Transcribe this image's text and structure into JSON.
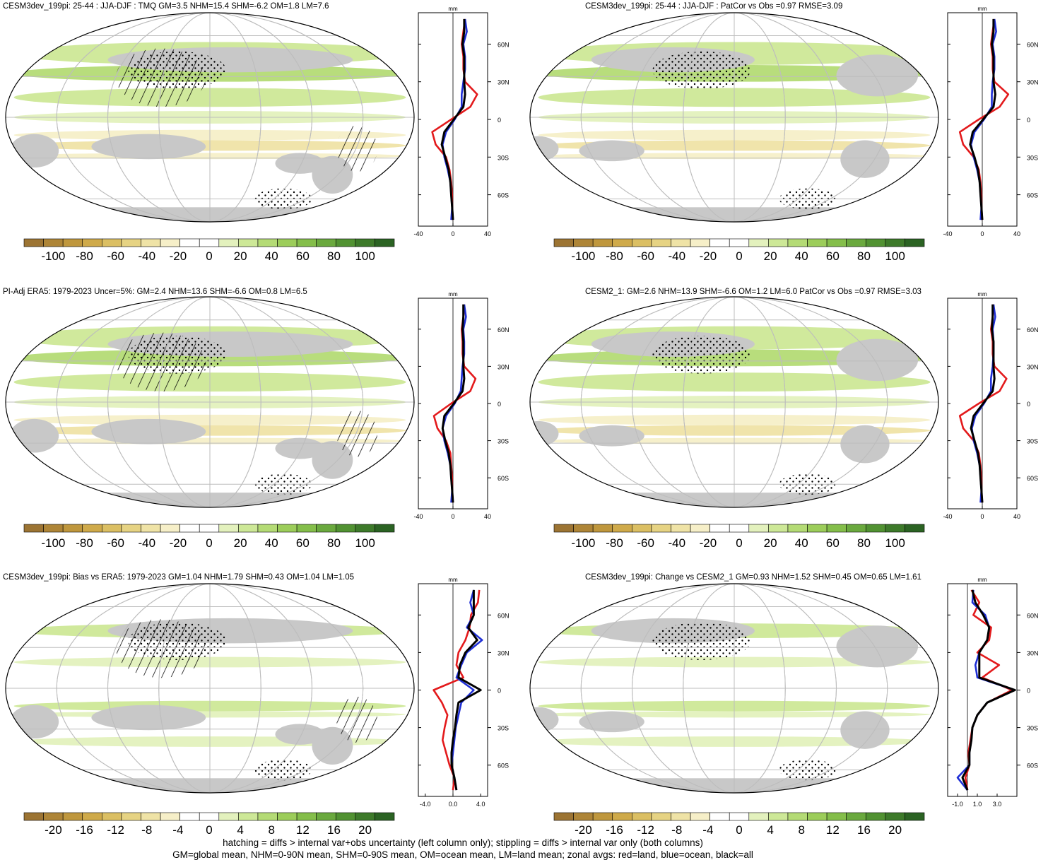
{
  "colors": {
    "land": "#c8c8c8",
    "grid": "#bdbdbd",
    "land_line": "#e31a1c",
    "ocean_line": "#1f2fd6",
    "all_line": "#000000",
    "palette": [
      "#9c7433",
      "#ae8537",
      "#bf973d",
      "#cfaa4a",
      "#dbbf63",
      "#e6d383",
      "#efe3a6",
      "#f6efc8",
      "#ffffff",
      "#ffffff",
      "#e3f1bd",
      "#cde897",
      "#b4db75",
      "#9ccd5a",
      "#84be4a",
      "#6aa93e",
      "#519232",
      "#3d7a2a",
      "#2b6323"
    ]
  },
  "icons": {
    "stipple": "stipple-pattern",
    "hatch": "hatch-pattern"
  },
  "panels": [
    {
      "title": "CESM3dev_199pi: 25-44 : JJA-DJF : TMQ GM=3.5 NHM=15.4 SHM=-6.2 OM=1.8 LM=7.6",
      "colorbar_labels": [
        "-100",
        "-80",
        "-60",
        "-40",
        "-20",
        "0",
        "20",
        "40",
        "60",
        "80",
        "100"
      ],
      "profile_unit": "mm",
      "profile_xticks": [
        "-40",
        "0",
        "40"
      ],
      "lat_labels": [
        "60N",
        "30N",
        "0",
        "30S",
        "60S"
      ],
      "central": "left"
    },
    {
      "title": "CESM3dev_199pi: 25-44 : JJA-DJF : PatCor vs Obs =0.97 RMSE=3.09",
      "colorbar_labels": [
        "-100",
        "-80",
        "-60",
        "-40",
        "-20",
        "0",
        "20",
        "40",
        "60",
        "80",
        "100"
      ],
      "profile_unit": "mm",
      "profile_xticks": [
        "-40",
        "0",
        "40"
      ],
      "lat_labels": [
        "60N",
        "30N",
        "0",
        "30S",
        "60S"
      ],
      "central": "right"
    },
    {
      "title": "PI-Adj ERA5: 1979-2023 Uncer=5%: GM=2.4 NHM=13.6 SHM=-6.6 OM=0.8 LM=6.5",
      "colorbar_labels": [
        "-100",
        "-80",
        "-60",
        "-40",
        "-20",
        "0",
        "20",
        "40",
        "60",
        "80",
        "100"
      ],
      "profile_unit": "mm",
      "profile_xticks": [
        "-40",
        "0",
        "40"
      ],
      "lat_labels": [
        "60N",
        "30N",
        "0",
        "30S",
        "60S"
      ],
      "central": "left"
    },
    {
      "title": "CESM2_1: GM=2.6 NHM=13.9 SHM=-6.6 OM=1.2 LM=6.0 PatCor vs Obs =0.97 RMSE=3.03",
      "colorbar_labels": [
        "-100",
        "-80",
        "-60",
        "-40",
        "-20",
        "0",
        "20",
        "40",
        "60",
        "80",
        "100"
      ],
      "profile_unit": "mm",
      "profile_xticks": [
        "-40",
        "0",
        "40"
      ],
      "lat_labels": [
        "60N",
        "30N",
        "0",
        "30S",
        "60S"
      ],
      "central": "right"
    },
    {
      "title": "CESM3dev_199pi: Bias vs ERA5: 1979-2023 GM=1.04 NHM=1.79 SHM=0.43 OM=1.04 LM=1.05",
      "colorbar_labels": [
        "-20",
        "-16",
        "-12",
        "-8",
        "-4",
        "0",
        "4",
        "8",
        "12",
        "16",
        "20"
      ],
      "profile_unit": "mm",
      "profile_xticks": [
        "-4.0",
        "0.0",
        "4.0"
      ],
      "lat_labels": [
        "60N",
        "30N",
        "0",
        "30S",
        "60S"
      ],
      "central": "left"
    },
    {
      "title": "CESM3dev_199pi: Change vs CESM2_1 GM=0.93 NHM=1.52 SHM=0.45 OM=0.65 LM=1.61",
      "colorbar_labels": [
        "-20",
        "-16",
        "-12",
        "-8",
        "-4",
        "0",
        "4",
        "8",
        "12",
        "16",
        "20"
      ],
      "profile_unit": "mm",
      "profile_xticks": [
        "-1.0",
        "1.0",
        "3.0"
      ],
      "lat_labels": [
        "60N",
        "30N",
        "0",
        "30S",
        "60S"
      ],
      "central": "right"
    }
  ],
  "footer": {
    "line1": "hatching = diffs > internal var+obs uncertainty (left column only); stippling = diffs > internal var only (both columns)",
    "line2": "GM=global mean, NHM=0-90N mean, SHM=0-90S mean, OM=ocean mean, LM=land mean; zonal avgs: red=land, blue=ocean, black=all"
  },
  "chart_data": [
    {
      "type": "map+line",
      "name_ref": "panel-1",
      "lat": [
        -80,
        -70,
        -60,
        -50,
        -40,
        -30,
        -20,
        -10,
        0,
        10,
        20,
        30,
        40,
        50,
        60,
        70,
        80
      ],
      "series": [
        {
          "name": "land",
          "values": [
            0,
            -1,
            -1,
            -2,
            -4,
            -8,
            -20,
            -24,
            -2,
            20,
            28,
            14,
            12,
            12,
            10,
            12,
            14
          ]
        },
        {
          "name": "ocean",
          "values": [
            -2,
            -1,
            -2,
            -3,
            -6,
            -10,
            -12,
            -8,
            2,
            10,
            10,
            12,
            14,
            14,
            12,
            16,
            14
          ]
        },
        {
          "name": "all",
          "values": [
            0,
            -1,
            -2,
            -3,
            -5,
            -9,
            -13,
            -10,
            1,
            12,
            14,
            13,
            13,
            13,
            11,
            13,
            13
          ]
        }
      ],
      "xlim": [
        -40,
        40
      ]
    },
    {
      "type": "map+line",
      "name_ref": "panel-2",
      "lat": [
        -80,
        -70,
        -60,
        -50,
        -40,
        -30,
        -20,
        -10,
        0,
        10,
        20,
        30,
        40,
        50,
        60,
        70,
        80
      ],
      "series": [
        {
          "name": "land",
          "values": [
            0,
            -1,
            -1,
            -2,
            -4,
            -10,
            -22,
            -26,
            -4,
            20,
            30,
            14,
            12,
            12,
            10,
            12,
            14
          ]
        },
        {
          "name": "ocean",
          "values": [
            -2,
            -1,
            -2,
            -3,
            -6,
            -10,
            -13,
            -9,
            2,
            11,
            11,
            12,
            14,
            14,
            12,
            16,
            14
          ]
        },
        {
          "name": "all",
          "values": [
            0,
            -1,
            -2,
            -3,
            -5,
            -9,
            -14,
            -11,
            1,
            13,
            15,
            13,
            13,
            13,
            11,
            13,
            13
          ]
        }
      ],
      "xlim": [
        -40,
        40
      ]
    },
    {
      "type": "map+line",
      "name_ref": "panel-3",
      "lat": [
        -80,
        -70,
        -60,
        -50,
        -40,
        -30,
        -20,
        -10,
        0,
        10,
        20,
        30,
        40,
        50,
        60,
        70,
        80
      ],
      "series": [
        {
          "name": "land",
          "values": [
            0,
            -1,
            -1,
            -2,
            -3,
            -8,
            -18,
            -22,
            -2,
            20,
            26,
            13,
            11,
            11,
            10,
            12,
            13
          ]
        },
        {
          "name": "ocean",
          "values": [
            -2,
            -1,
            -2,
            -3,
            -6,
            -10,
            -12,
            -8,
            2,
            9,
            10,
            11,
            13,
            13,
            12,
            15,
            13
          ]
        },
        {
          "name": "all",
          "values": [
            0,
            -1,
            -2,
            -3,
            -5,
            -9,
            -12,
            -10,
            1,
            11,
            13,
            12,
            12,
            12,
            11,
            12,
            12
          ]
        }
      ],
      "xlim": [
        -40,
        40
      ]
    },
    {
      "type": "map+line",
      "name_ref": "panel-4",
      "lat": [
        -80,
        -70,
        -60,
        -50,
        -40,
        -30,
        -20,
        -10,
        0,
        10,
        20,
        30,
        40,
        50,
        60,
        70,
        80
      ],
      "series": [
        {
          "name": "land",
          "values": [
            0,
            -1,
            -1,
            -2,
            -4,
            -10,
            -22,
            -26,
            -4,
            20,
            28,
            14,
            12,
            12,
            10,
            12,
            13
          ]
        },
        {
          "name": "ocean",
          "values": [
            -2,
            -1,
            -2,
            -3,
            -6,
            -10,
            -12,
            -8,
            2,
            10,
            10,
            12,
            13,
            13,
            12,
            15,
            13
          ]
        },
        {
          "name": "all",
          "values": [
            0,
            -1,
            -2,
            -3,
            -5,
            -9,
            -13,
            -10,
            1,
            12,
            14,
            13,
            13,
            13,
            11,
            12,
            12
          ]
        }
      ],
      "xlim": [
        -40,
        40
      ]
    },
    {
      "type": "map+line",
      "name_ref": "panel-5",
      "lat": [
        -80,
        -70,
        -60,
        -50,
        -40,
        -30,
        -20,
        -10,
        0,
        10,
        20,
        30,
        40,
        50,
        60,
        70,
        80
      ],
      "series": [
        {
          "name": "land",
          "values": [
            0,
            0.2,
            -0.5,
            -1,
            -1.5,
            -1.2,
            -0.8,
            -1.6,
            -2.8,
            1.5,
            0.5,
            0.8,
            1.8,
            2.4,
            2.6,
            3.6,
            3.8
          ]
        },
        {
          "name": "ocean",
          "values": [
            0.5,
            0.2,
            -0.2,
            0,
            0.2,
            0.4,
            0.8,
            1.2,
            3.0,
            0.5,
            1.2,
            2.0,
            4.2,
            2.0,
            3.0,
            2.5,
            3.0
          ]
        },
        {
          "name": "all",
          "values": [
            0.5,
            0.2,
            -0.2,
            -0.2,
            0,
            0.3,
            0.5,
            0.8,
            4.0,
            0.8,
            1.0,
            1.8,
            3.5,
            2.2,
            3.0,
            3.0,
            3.0
          ]
        }
      ],
      "xlim": [
        -5,
        5
      ]
    },
    {
      "type": "map+line",
      "name_ref": "panel-6",
      "lat": [
        -80,
        -70,
        -60,
        -50,
        -40,
        -30,
        -20,
        -10,
        0,
        10,
        20,
        30,
        40,
        50,
        60,
        70,
        80
      ],
      "series": [
        {
          "name": "land",
          "values": [
            0,
            -0.2,
            0.2,
            0.1,
            0.3,
            0.5,
            1.0,
            2.0,
            4.5,
            1.5,
            3.2,
            1.0,
            2.2,
            2.4,
            0.6,
            1.2,
            0.4
          ]
        },
        {
          "name": "ocean",
          "values": [
            0,
            -1.0,
            0.2,
            0.2,
            0.4,
            0.5,
            1.0,
            2.0,
            4.8,
            1.0,
            0.8,
            1.2,
            2.0,
            2.2,
            1.8,
            0.5,
            0.6
          ]
        },
        {
          "name": "all",
          "values": [
            0,
            -0.5,
            0.2,
            0.2,
            0.4,
            0.5,
            1.0,
            2.0,
            4.8,
            1.2,
            1.2,
            1.2,
            2.0,
            2.2,
            1.6,
            0.8,
            0.5
          ]
        }
      ],
      "xlim": [
        -2,
        5
      ]
    }
  ]
}
